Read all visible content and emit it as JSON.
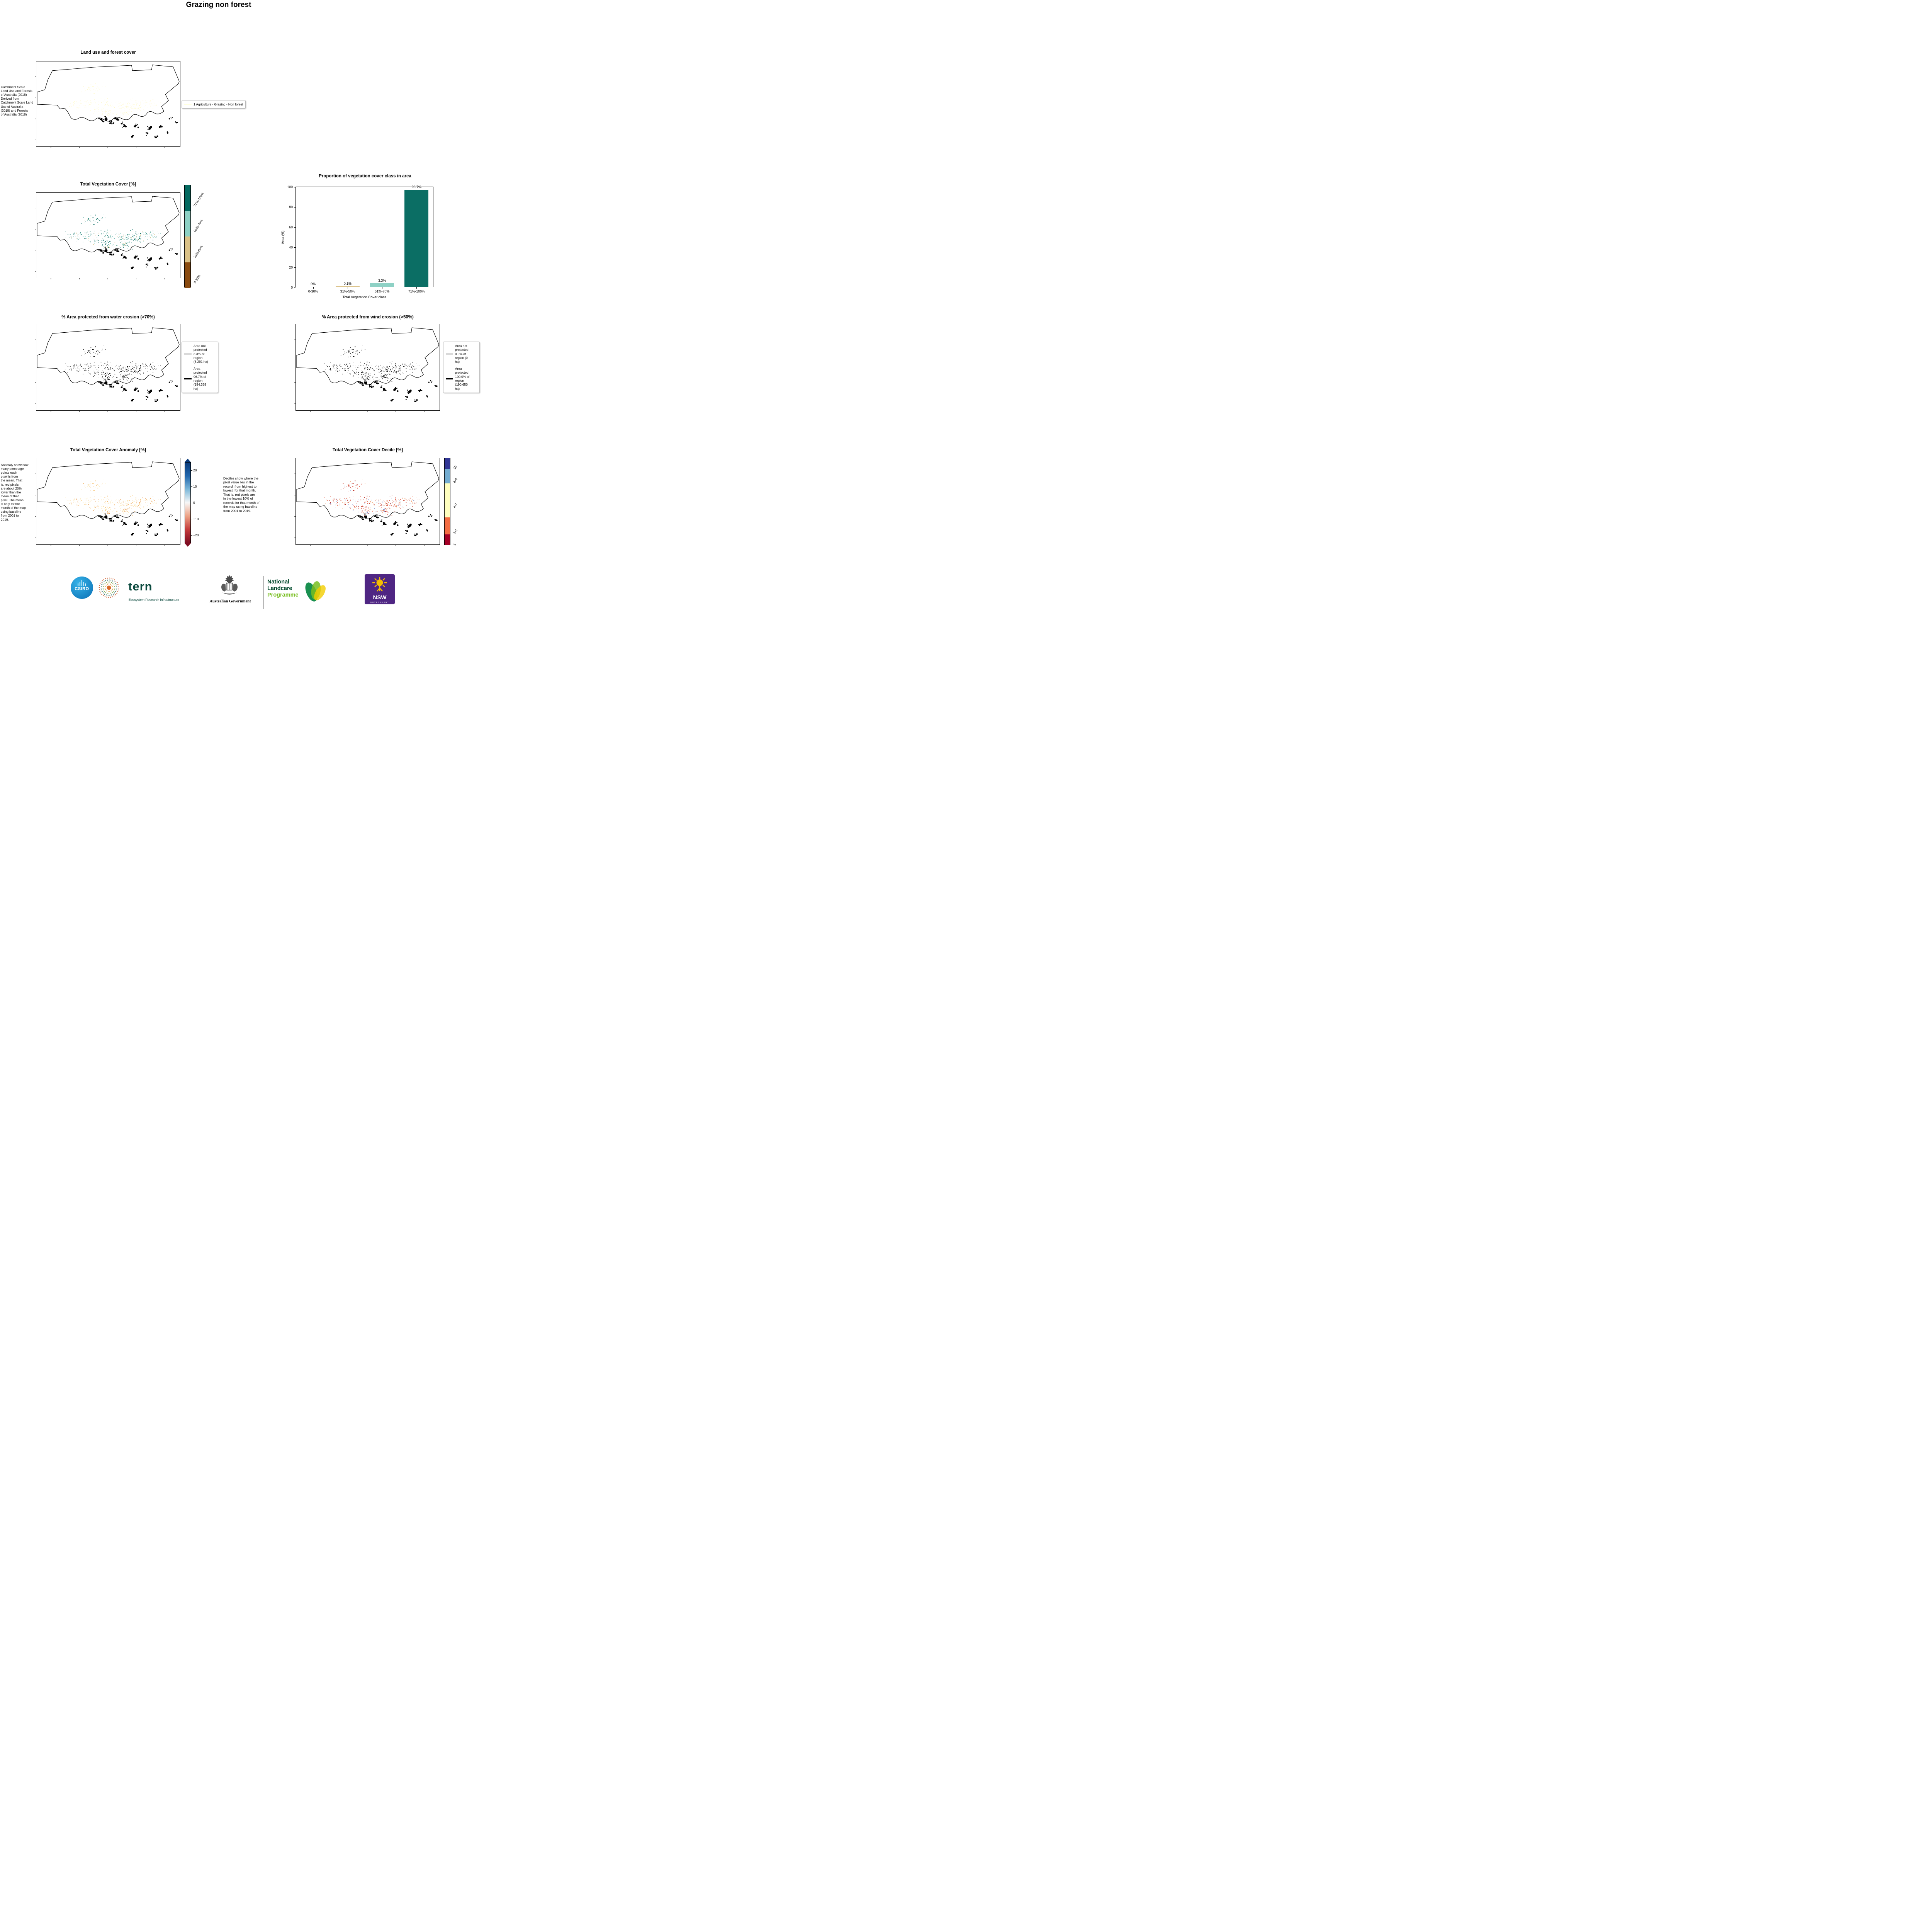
{
  "page": {
    "title": "Grazing non forest"
  },
  "panels": {
    "land_use": {
      "title": "Land use and forest cover",
      "side_note": " Catchment Scale\nLand Use and Forests\nof Australia (2018)\nDerived from\nCatchment Scale Land\nUse of Australia\n(2018) and Forests\nof Australia (2018)",
      "legend_label": "1 Agriculture - Grazing - Non forest",
      "legend_color": "#ffffdf",
      "dot_colors": [
        "#fffbd6",
        "#fdf7c8",
        "#fffce8"
      ]
    },
    "tvc": {
      "title": "Total Vegetation Cover [%]",
      "colorbar": [
        {
          "label": "71%-100%",
          "color": "#046a60"
        },
        {
          "label": "51%-70%",
          "color": "#8ed1c5"
        },
        {
          "label": "31%-50%",
          "color": "#dbc288"
        },
        {
          "label": "0-30%",
          "color": "#8a4b10"
        }
      ],
      "dot_colors": [
        "#0b6e64",
        "#0b6e64",
        "#1b7f74",
        "#56a99e",
        "#8ed1c5",
        "#dbc288"
      ]
    },
    "water": {
      "title": "% Area protected from water erosion (>70%)",
      "legend": [
        {
          "label": "Area not\nprotected\n3.3% of\nregion\n(6,291 ha)",
          "color": "#d9d9d9"
        },
        {
          "label": "Area\nprotected\n96.7% of\nregion\n(184,359\nha)",
          "color": "#000000"
        }
      ],
      "dot_colors": [
        "#000000",
        "#1a1a1a",
        "#333333"
      ]
    },
    "wind": {
      "title": "% Area protected from wind erosion (>50%)",
      "legend": [
        {
          "label": "Area not\nprotected\n0.0% of\nregion (0\nha)",
          "color": "#d9d9d9"
        },
        {
          "label": "Area\nprotected\n100.0% of\nregion\n(190,650\nha)",
          "color": "#000000"
        }
      ],
      "dot_colors": [
        "#000000",
        "#1a1a1a",
        "#333333"
      ]
    },
    "anomaly": {
      "title": "Total Vegetation Cover Anomaly [%]",
      "side_note": "Anomaly show how\nmany percetage\npoints each\npixel is from\nthe mean. That\nis, red pixels\nare about 20%\nlower than the\nmean of that\npixel. The mean\nis only for the\nmonth of the map\nusing baseline\nfrom 2001 to\n2019.",
      "colorbar_ticks": [
        "20",
        "10",
        "0",
        "−10",
        "−20"
      ],
      "colorbar_stops": [
        "#083a7a",
        "#2166ac",
        "#7db8d9",
        "#f7f7f7",
        "#eda285",
        "#c43c3c",
        "#7f0d22"
      ],
      "dot_colors": [
        "#f8c980",
        "#fbe3a8",
        "#f2b05e",
        "#fdf3cf",
        "#e89b54"
      ]
    },
    "decile": {
      "title": "Total Vegetation Cover Decile [%]",
      "side_note": "Deciles show where the\npixel value lies in the\nrecord, from highest to\nlowest, for that month.\nThat is, red pixels are\nin the lowest 10% of\nrecords for that month of\nthe map using baseline\nfrom 2001 to 2019.",
      "colorbar": [
        {
          "label": "10",
          "color": "#313695"
        },
        {
          "label": "8-9",
          "color": "#74add1"
        },
        {
          "label": "4-7",
          "color": "#ffffbf"
        },
        {
          "label": "2-3",
          "color": "#f46d43"
        },
        {
          "label": "1",
          "color": "#a50026"
        }
      ],
      "dot_colors": [
        "#b8281e",
        "#d9442e",
        "#e97b57",
        "#c93a24",
        "#f0a173",
        "#6f86c9"
      ]
    }
  },
  "chart_data": {
    "type": "bar",
    "title": "Proportion of vegetation cover class in area",
    "categories": [
      "0-30%",
      "31%-50%",
      "51%-70%",
      "71%-100%"
    ],
    "values": [
      0,
      0.1,
      3.3,
      96.7
    ],
    "bar_labels": [
      "0%",
      "0.1%",
      "3.3%",
      "96.7%"
    ],
    "bar_colors": [
      "#8a4b10",
      "#dbc288",
      "#8ed1c5",
      "#0b6e64"
    ],
    "xlabel": "Total Vegetation Cover class",
    "ylabel": "Area (%)",
    "ylim": [
      0,
      100
    ],
    "yticks": [
      0,
      20,
      40,
      60,
      80,
      100
    ],
    "legend_position": "none",
    "grid": false
  },
  "footer": {
    "csiro_label": "CSIRO",
    "tern_label": "tern",
    "tern_sub": "Ecosystem Research Infrastructure",
    "aus_gov_label": "Australian Government",
    "nlp_line1": "National",
    "nlp_line2": "Landcare",
    "nlp_line3": "Programme",
    "nsw_label": "NSW",
    "nsw_sub": "GOVERNMENT"
  }
}
